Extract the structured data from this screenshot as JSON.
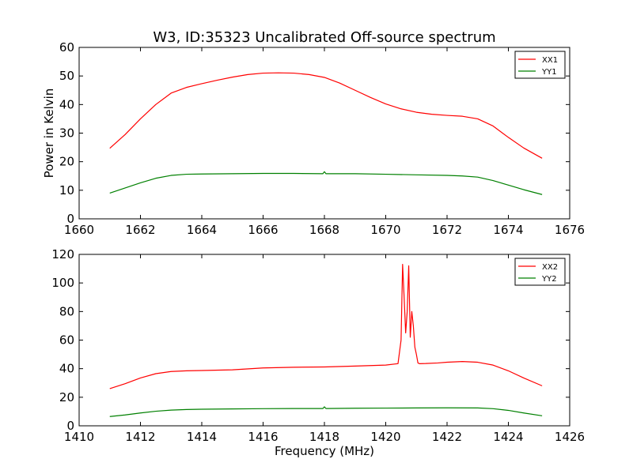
{
  "figure_title": "W3, ID:35323 Uncalibrated Off-source spectrum",
  "colors": {
    "red": "#ff0000",
    "green": "#008000",
    "frame": "#000000"
  },
  "chart_data": [
    {
      "type": "line",
      "title": "W3, ID:35323 Uncalibrated Off-source spectrum",
      "xlabel": "",
      "ylabel": "Power in Kelvin",
      "xlim": [
        1660,
        1676
      ],
      "ylim": [
        0,
        60
      ],
      "xticks": [
        1660,
        1662,
        1664,
        1666,
        1668,
        1670,
        1672,
        1674,
        1676
      ],
      "yticks": [
        0,
        10,
        20,
        30,
        40,
        50,
        60
      ],
      "grid": false,
      "legend": "top-right",
      "series": [
        {
          "name": "XX1",
          "color": "#ff0000",
          "x": [
            1661.0,
            1661.5,
            1662.0,
            1662.5,
            1663.0,
            1663.5,
            1664.0,
            1664.5,
            1665.0,
            1665.5,
            1666.0,
            1666.5,
            1667.0,
            1667.5,
            1668.0,
            1668.5,
            1669.0,
            1669.5,
            1670.0,
            1670.5,
            1671.0,
            1671.5,
            1672.0,
            1672.5,
            1673.0,
            1673.5,
            1674.0,
            1674.5,
            1675.1
          ],
          "y": [
            24.7,
            29.5,
            35.0,
            40.0,
            44.0,
            46.0,
            47.3,
            48.5,
            49.6,
            50.5,
            51.0,
            51.1,
            51.0,
            50.5,
            49.5,
            47.5,
            45.0,
            42.5,
            40.2,
            38.5,
            37.3,
            36.6,
            36.2,
            35.9,
            35.0,
            32.5,
            28.5,
            24.8,
            21.2
          ]
        },
        {
          "name": "YY1",
          "color": "#008000",
          "x": [
            1661.0,
            1661.5,
            1662.0,
            1662.5,
            1663.0,
            1663.5,
            1664.0,
            1665.0,
            1666.0,
            1667.0,
            1667.95,
            1668.0,
            1668.05,
            1669.0,
            1670.0,
            1671.0,
            1672.0,
            1672.5,
            1673.0,
            1673.5,
            1674.0,
            1674.5,
            1675.1
          ],
          "y": [
            9.0,
            10.8,
            12.6,
            14.2,
            15.2,
            15.6,
            15.7,
            15.8,
            15.9,
            15.9,
            15.8,
            16.5,
            15.8,
            15.8,
            15.6,
            15.4,
            15.2,
            15.0,
            14.6,
            13.4,
            11.8,
            10.2,
            8.5
          ]
        }
      ]
    },
    {
      "type": "line",
      "title": "",
      "xlabel": "Frequency (MHz)",
      "ylabel": "",
      "xlim": [
        1410,
        1426
      ],
      "ylim": [
        0,
        120
      ],
      "xticks": [
        1410,
        1412,
        1414,
        1416,
        1418,
        1420,
        1422,
        1424,
        1426
      ],
      "yticks": [
        0,
        20,
        40,
        60,
        80,
        100,
        120
      ],
      "grid": false,
      "legend": "top-right",
      "series": [
        {
          "name": "XX2",
          "color": "#ff0000",
          "x": [
            1411.0,
            1411.5,
            1412.0,
            1412.5,
            1413.0,
            1413.5,
            1414.0,
            1415.0,
            1416.0,
            1417.0,
            1418.0,
            1419.0,
            1420.0,
            1420.4,
            1420.5,
            1420.55,
            1420.6,
            1420.65,
            1420.7,
            1420.75,
            1420.8,
            1420.85,
            1420.9,
            1420.95,
            1421.0,
            1421.05,
            1421.1,
            1421.3,
            1421.7,
            1422.0,
            1422.5,
            1423.0,
            1423.5,
            1424.0,
            1424.5,
            1425.1
          ],
          "y": [
            26.0,
            29.5,
            33.5,
            36.5,
            38.0,
            38.5,
            38.7,
            39.2,
            40.5,
            41.0,
            41.2,
            41.8,
            42.5,
            43.5,
            60.0,
            113.0,
            90.0,
            65.0,
            80.0,
            112.0,
            62.0,
            80.0,
            70.0,
            55.0,
            50.0,
            44.0,
            43.5,
            43.6,
            44.0,
            44.5,
            45.0,
            44.5,
            42.5,
            38.5,
            33.5,
            28.0
          ]
        },
        {
          "name": "YY2",
          "color": "#008000",
          "x": [
            1411.0,
            1411.5,
            1412.0,
            1412.5,
            1413.0,
            1413.5,
            1414.0,
            1415.0,
            1416.0,
            1417.0,
            1417.95,
            1418.0,
            1418.05,
            1419.0,
            1420.0,
            1421.0,
            1422.0,
            1423.0,
            1423.5,
            1424.0,
            1424.5,
            1425.1
          ],
          "y": [
            6.5,
            7.6,
            9.0,
            10.2,
            11.0,
            11.4,
            11.6,
            11.8,
            12.0,
            12.1,
            12.1,
            13.3,
            12.1,
            12.3,
            12.4,
            12.5,
            12.6,
            12.5,
            12.0,
            10.8,
            9.0,
            7.0
          ]
        }
      ]
    }
  ]
}
